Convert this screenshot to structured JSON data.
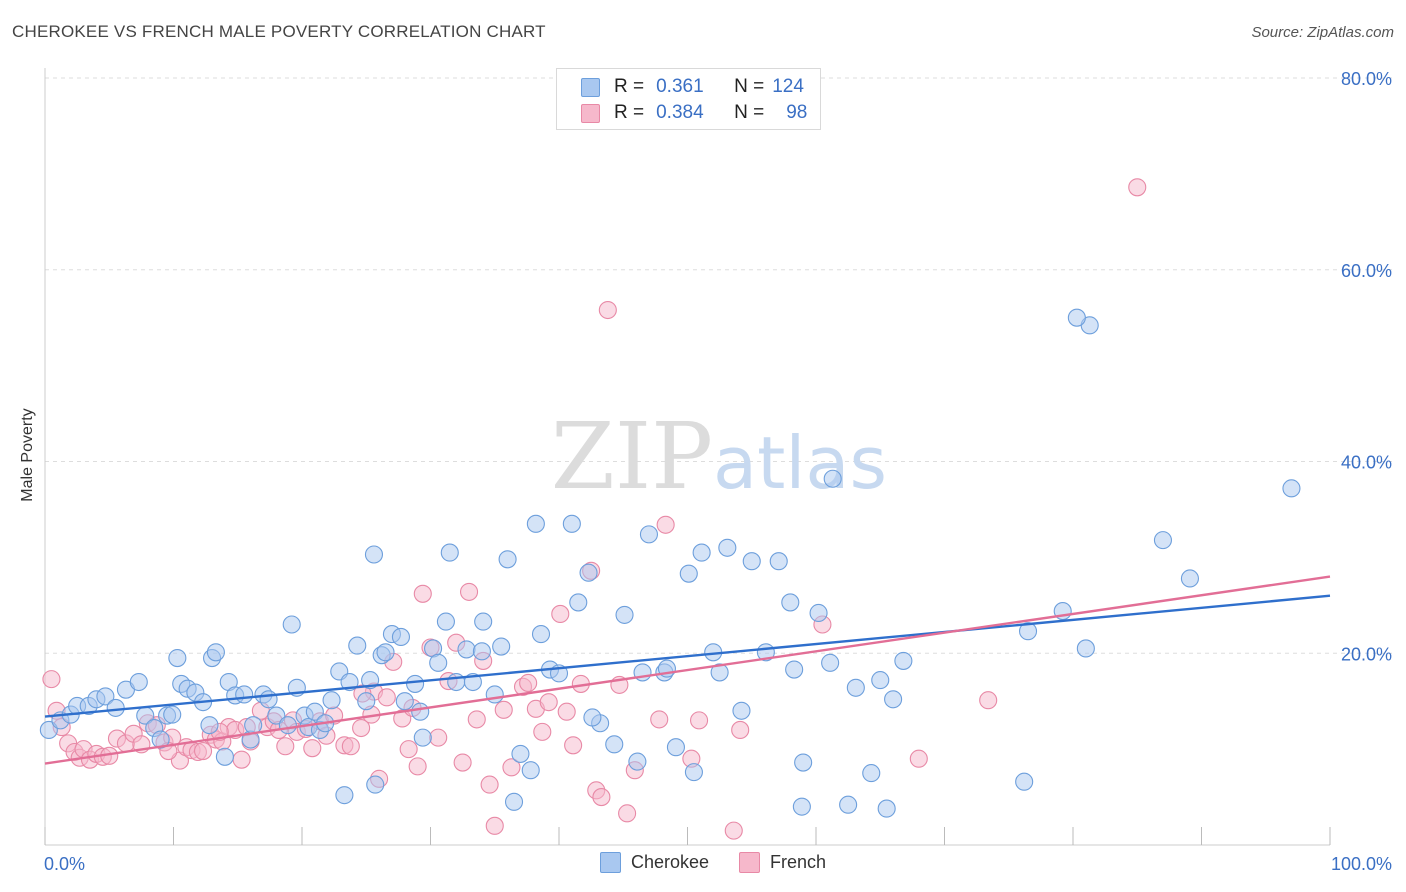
{
  "header": {
    "title": "CHEROKEE VS FRENCH MALE POVERTY CORRELATION CHART",
    "source": "Source: ZipAtlas.com"
  },
  "watermark": {
    "zip": "ZIP",
    "atlas": "atlas"
  },
  "legend": {
    "rows": [
      {
        "r_label": "R =",
        "r_value": "0.361",
        "n_label": "N =",
        "n_value": "124"
      },
      {
        "r_label": "R =",
        "r_value": "0.384",
        "n_label": "N =",
        "n_value": "98"
      }
    ]
  },
  "colors": {
    "cherokee_fill": "#a9c8f0",
    "cherokee_stroke": "#6d9fdc",
    "cherokee_line": "#2f6fcc",
    "french_fill": "#f6b8cb",
    "french_stroke": "#e889a6",
    "french_line": "#e26e96",
    "tick_label": "#3a6fc4",
    "grid": "#dddddd"
  },
  "chart_data": {
    "type": "scatter",
    "title": "CHEROKEE VS FRENCH MALE POVERTY CORRELATION CHART",
    "xlabel": "",
    "ylabel": "Male Poverty",
    "xlim": [
      0,
      100
    ],
    "ylim": [
      0,
      80
    ],
    "x_tick_labels": [
      "0.0%",
      "100.0%"
    ],
    "y_ticks": [
      20,
      40,
      60,
      80
    ],
    "y_tick_labels": [
      "20.0%",
      "40.0%",
      "60.0%",
      "80.0%"
    ],
    "grid": true,
    "legend_position": "bottom-center",
    "series": [
      {
        "name": "Cherokee",
        "stats": {
          "R": 0.361,
          "N": 124
        },
        "trend": {
          "x": [
            0,
            100
          ],
          "y": [
            13.4,
            26.0
          ]
        },
        "points": [
          [
            0.3,
            12.0
          ],
          [
            1.2,
            13.0
          ],
          [
            2.0,
            13.6
          ],
          [
            2.5,
            14.5
          ],
          [
            3.4,
            14.5
          ],
          [
            4.0,
            15.2
          ],
          [
            4.7,
            15.5
          ],
          [
            5.5,
            14.3
          ],
          [
            6.3,
            16.2
          ],
          [
            7.3,
            17.0
          ],
          [
            7.8,
            13.5
          ],
          [
            8.5,
            12.2
          ],
          [
            9.0,
            11.0
          ],
          [
            9.5,
            13.5
          ],
          [
            9.9,
            13.6
          ],
          [
            10.3,
            19.5
          ],
          [
            10.6,
            16.8
          ],
          [
            11.1,
            16.3
          ],
          [
            11.7,
            15.9
          ],
          [
            12.3,
            14.9
          ],
          [
            12.8,
            12.5
          ],
          [
            13.0,
            19.5
          ],
          [
            13.3,
            20.1
          ],
          [
            14.0,
            9.2
          ],
          [
            14.3,
            17.0
          ],
          [
            14.8,
            15.6
          ],
          [
            15.5,
            15.7
          ],
          [
            16.0,
            11.0
          ],
          [
            16.2,
            12.5
          ],
          [
            17.0,
            15.7
          ],
          [
            17.4,
            15.2
          ],
          [
            18.0,
            13.5
          ],
          [
            18.9,
            12.5
          ],
          [
            19.2,
            23.0
          ],
          [
            19.6,
            16.4
          ],
          [
            20.2,
            13.5
          ],
          [
            20.5,
            12.3
          ],
          [
            21.0,
            13.9
          ],
          [
            21.4,
            12.0
          ],
          [
            21.8,
            12.7
          ],
          [
            22.3,
            15.1
          ],
          [
            22.9,
            18.1
          ],
          [
            23.3,
            5.2
          ],
          [
            23.7,
            17.0
          ],
          [
            24.3,
            20.8
          ],
          [
            25.0,
            15.0
          ],
          [
            25.3,
            17.2
          ],
          [
            25.6,
            30.3
          ],
          [
            26.2,
            19.8
          ],
          [
            26.5,
            20.1
          ],
          [
            27.0,
            22.0
          ],
          [
            27.7,
            21.7
          ],
          [
            28.0,
            15.0
          ],
          [
            28.8,
            16.8
          ],
          [
            29.2,
            13.9
          ],
          [
            29.4,
            11.2
          ],
          [
            30.2,
            20.5
          ],
          [
            30.6,
            19.0
          ],
          [
            31.5,
            30.5
          ],
          [
            31.2,
            23.3
          ],
          [
            32.0,
            17.0
          ],
          [
            32.8,
            20.4
          ],
          [
            33.3,
            17.0
          ],
          [
            34.0,
            20.2
          ],
          [
            35.0,
            15.7
          ],
          [
            35.5,
            20.7
          ],
          [
            36.0,
            29.8
          ],
          [
            36.5,
            4.5
          ],
          [
            37.0,
            9.5
          ],
          [
            37.8,
            7.8
          ],
          [
            38.2,
            33.5
          ],
          [
            38.6,
            22.0
          ],
          [
            39.3,
            18.3
          ],
          [
            40.0,
            17.9
          ],
          [
            41.0,
            33.5
          ],
          [
            41.5,
            25.3
          ],
          [
            42.3,
            28.4
          ],
          [
            43.2,
            12.7
          ],
          [
            44.3,
            10.5
          ],
          [
            45.1,
            24.0
          ],
          [
            46.1,
            8.7
          ],
          [
            46.5,
            18.0
          ],
          [
            47.0,
            32.4
          ],
          [
            48.2,
            18.0
          ],
          [
            49.1,
            10.2
          ],
          [
            50.1,
            28.3
          ],
          [
            50.5,
            7.6
          ],
          [
            51.1,
            30.5
          ],
          [
            52.0,
            20.1
          ],
          [
            52.5,
            18.0
          ],
          [
            53.1,
            31.0
          ],
          [
            54.2,
            14.0
          ],
          [
            55.0,
            29.6
          ],
          [
            56.1,
            20.1
          ],
          [
            57.1,
            29.6
          ],
          [
            58.0,
            25.3
          ],
          [
            58.3,
            18.3
          ],
          [
            58.9,
            4.0
          ],
          [
            59.0,
            8.6
          ],
          [
            60.2,
            24.2
          ],
          [
            61.1,
            19.0
          ],
          [
            62.5,
            4.2
          ],
          [
            63.1,
            16.4
          ],
          [
            64.3,
            7.5
          ],
          [
            65.0,
            17.2
          ],
          [
            65.5,
            3.8
          ],
          [
            66.0,
            15.2
          ],
          [
            66.8,
            19.2
          ],
          [
            76.5,
            22.3
          ],
          [
            76.2,
            6.6
          ],
          [
            79.2,
            24.4
          ],
          [
            81.0,
            20.5
          ],
          [
            81.3,
            54.2
          ],
          [
            87.0,
            31.8
          ],
          [
            89.1,
            27.8
          ],
          [
            97.0,
            37.2
          ],
          [
            61.3,
            38.2
          ],
          [
            80.3,
            55.0
          ],
          [
            25.7,
            6.3
          ],
          [
            42.6,
            13.3
          ],
          [
            34.1,
            23.3
          ],
          [
            48.4,
            18.4
          ]
        ]
      },
      {
        "name": "French",
        "stats": {
          "R": 0.384,
          "N": 98
        },
        "trend": {
          "x": [
            0,
            100
          ],
          "y": [
            8.5,
            28.0
          ]
        },
        "points": [
          [
            0.5,
            17.3
          ],
          [
            0.9,
            14.0
          ],
          [
            1.3,
            12.3
          ],
          [
            1.8,
            10.6
          ],
          [
            2.3,
            9.7
          ],
          [
            2.7,
            9.1
          ],
          [
            3.0,
            10.0
          ],
          [
            3.5,
            8.9
          ],
          [
            4.0,
            9.5
          ],
          [
            4.5,
            9.2
          ],
          [
            5.0,
            9.3
          ],
          [
            5.6,
            11.1
          ],
          [
            6.3,
            10.6
          ],
          [
            6.9,
            11.6
          ],
          [
            7.5,
            10.5
          ],
          [
            8.0,
            12.7
          ],
          [
            8.7,
            12.5
          ],
          [
            9.3,
            10.7
          ],
          [
            9.9,
            11.2
          ],
          [
            10.5,
            8.8
          ],
          [
            11.0,
            10.2
          ],
          [
            11.4,
            9.9
          ],
          [
            11.9,
            9.7
          ],
          [
            12.3,
            9.8
          ],
          [
            12.9,
            11.5
          ],
          [
            13.3,
            11.0
          ],
          [
            13.8,
            10.8
          ],
          [
            14.3,
            12.3
          ],
          [
            14.8,
            12.0
          ],
          [
            15.3,
            8.9
          ],
          [
            15.7,
            12.3
          ],
          [
            16.0,
            10.8
          ],
          [
            16.8,
            14.0
          ],
          [
            17.3,
            12.3
          ],
          [
            17.8,
            12.9
          ],
          [
            18.2,
            12.0
          ],
          [
            18.7,
            10.3
          ],
          [
            19.3,
            13.0
          ],
          [
            19.6,
            11.8
          ],
          [
            20.3,
            12.1
          ],
          [
            20.8,
            10.1
          ],
          [
            21.4,
            12.9
          ],
          [
            21.9,
            11.4
          ],
          [
            22.5,
            13.5
          ],
          [
            23.3,
            10.4
          ],
          [
            23.8,
            10.3
          ],
          [
            24.6,
            12.2
          ],
          [
            25.4,
            13.6
          ],
          [
            25.6,
            16.0
          ],
          [
            26.0,
            6.9
          ],
          [
            26.6,
            15.4
          ],
          [
            27.1,
            19.1
          ],
          [
            27.8,
            13.2
          ],
          [
            28.3,
            10.0
          ],
          [
            28.6,
            14.3
          ],
          [
            29.0,
            8.2
          ],
          [
            29.4,
            26.2
          ],
          [
            30.0,
            20.6
          ],
          [
            30.6,
            11.2
          ],
          [
            31.4,
            17.1
          ],
          [
            32.0,
            21.1
          ],
          [
            32.5,
            8.6
          ],
          [
            33.0,
            26.4
          ],
          [
            33.6,
            13.1
          ],
          [
            34.1,
            19.2
          ],
          [
            34.6,
            6.3
          ],
          [
            35.0,
            2.0
          ],
          [
            35.7,
            14.1
          ],
          [
            36.3,
            8.1
          ],
          [
            37.2,
            16.5
          ],
          [
            37.6,
            16.9
          ],
          [
            38.2,
            14.2
          ],
          [
            38.7,
            11.8
          ],
          [
            39.2,
            14.9
          ],
          [
            40.1,
            24.1
          ],
          [
            40.6,
            13.9
          ],
          [
            41.1,
            10.4
          ],
          [
            41.7,
            16.8
          ],
          [
            42.5,
            28.6
          ],
          [
            42.9,
            5.7
          ],
          [
            43.3,
            5.0
          ],
          [
            43.8,
            55.8
          ],
          [
            45.3,
            3.3
          ],
          [
            45.9,
            7.8
          ],
          [
            47.8,
            13.1
          ],
          [
            48.3,
            33.4
          ],
          [
            50.3,
            9.0
          ],
          [
            50.9,
            13.0
          ],
          [
            53.6,
            1.5
          ],
          [
            54.1,
            12.0
          ],
          [
            60.5,
            23.0
          ],
          [
            68.0,
            9.0
          ],
          [
            73.4,
            15.1
          ],
          [
            85.0,
            68.6
          ],
          [
            9.6,
            9.8
          ],
          [
            13.6,
            11.8
          ],
          [
            24.7,
            15.8
          ],
          [
            44.7,
            16.7
          ]
        ]
      }
    ]
  },
  "bottom_legend": {
    "items": [
      {
        "label": "Cherokee"
      },
      {
        "label": "French"
      }
    ]
  }
}
